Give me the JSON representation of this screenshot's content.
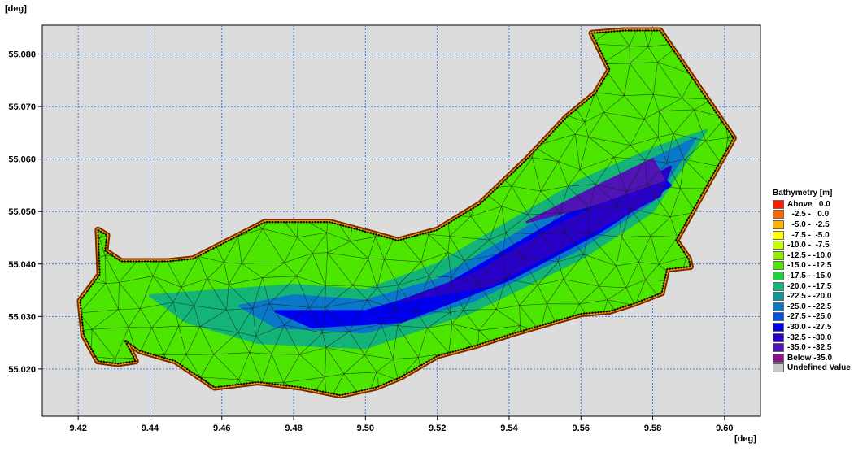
{
  "chart_data": {
    "type": "heatmap",
    "title": "",
    "x_unit": "[deg]",
    "y_unit": "[deg]",
    "xlim": [
      9.41,
      9.61
    ],
    "ylim": [
      55.011,
      55.0855
    ],
    "x_ticks": [
      "9.42",
      "9.44",
      "9.46",
      "9.48",
      "9.50",
      "9.52",
      "9.54",
      "9.56",
      "9.58",
      "9.60"
    ],
    "y_ticks": [
      "55.020",
      "55.030",
      "55.040",
      "55.050",
      "55.060",
      "55.070",
      "55.080"
    ],
    "grid": true,
    "legend_placement": "right",
    "legend": {
      "title": "Bathymetry [m]",
      "entries": [
        {
          "label": "Above   0.0",
          "color": "#ff1a00"
        },
        {
          "label": "  -2.5 -   0.0",
          "color": "#ff6a00"
        },
        {
          "label": "  -5.0 -  -2.5",
          "color": "#ffb300"
        },
        {
          "label": "  -7.5 -  -5.0",
          "color": "#ffff00"
        },
        {
          "label": "-10.0 -  -7.5",
          "color": "#c8ff00"
        },
        {
          "label": "-12.5 - -10.0",
          "color": "#8cf000"
        },
        {
          "label": "-15.0 - -12.5",
          "color": "#4ce600"
        },
        {
          "label": "-17.5 - -15.0",
          "color": "#1ed23c"
        },
        {
          "label": "-20.0 - -17.5",
          "color": "#14b478"
        },
        {
          "label": "-22.5 - -20.0",
          "color": "#0f96a0"
        },
        {
          "label": "-25.0 - -22.5",
          "color": "#0a78c8"
        },
        {
          "label": "-27.5 - -25.0",
          "color": "#0050e6"
        },
        {
          "label": "-30.0 - -27.5",
          "color": "#0000f0"
        },
        {
          "label": "-32.5 - -30.0",
          "color": "#2800c8"
        },
        {
          "label": "-35.0 - -32.5",
          "color": "#5014b4"
        },
        {
          "label": "Below -35.0",
          "color": "#8c1490"
        },
        {
          "label": "Undefined Value",
          "color": "#c8c8c8"
        }
      ]
    },
    "domain_outline": [
      [
        9.4255,
        55.0465
      ],
      [
        9.428,
        55.0455
      ],
      [
        9.4275,
        55.0425
      ],
      [
        9.432,
        55.0405
      ],
      [
        9.445,
        55.0405
      ],
      [
        9.452,
        55.041
      ],
      [
        9.462,
        55.0445
      ],
      [
        9.472,
        55.048
      ],
      [
        9.49,
        55.048
      ],
      [
        9.501,
        55.046
      ],
      [
        9.509,
        55.0445
      ],
      [
        9.52,
        55.0465
      ],
      [
        9.532,
        55.0515
      ],
      [
        9.545,
        55.06
      ],
      [
        9.556,
        55.068
      ],
      [
        9.564,
        55.0725
      ],
      [
        9.568,
        55.077
      ],
      [
        9.563,
        55.084
      ],
      [
        9.572,
        55.0845
      ],
      [
        9.582,
        55.0845
      ],
      [
        9.6025,
        55.064
      ],
      [
        9.5865,
        55.0445
      ],
      [
        9.59,
        55.041
      ],
      [
        9.5905,
        55.0395
      ],
      [
        9.584,
        55.039
      ],
      [
        9.5825,
        55.0345
      ],
      [
        9.575,
        55.0325
      ],
      [
        9.568,
        55.031
      ],
      [
        9.56,
        55.0305
      ],
      [
        9.55,
        55.0285
      ],
      [
        9.54,
        55.0265
      ],
      [
        9.531,
        55.0245
      ],
      [
        9.52,
        55.0225
      ],
      [
        9.51,
        55.0185
      ],
      [
        9.503,
        55.0165
      ],
      [
        9.493,
        55.015
      ],
      [
        9.482,
        55.0165
      ],
      [
        9.47,
        55.0175
      ],
      [
        9.458,
        55.0165
      ],
      [
        9.447,
        55.0215
      ],
      [
        9.437,
        55.0235
      ],
      [
        9.433,
        55.0255
      ],
      [
        9.436,
        55.0215
      ],
      [
        9.431,
        55.021
      ],
      [
        9.4255,
        55.0215
      ],
      [
        9.4215,
        55.0265
      ],
      [
        9.4205,
        55.033
      ],
      [
        9.426,
        55.038
      ]
    ],
    "depth_contours": [
      {
        "depth_m": -15.0,
        "points": [
          [
            9.44,
            55.034
          ],
          [
            9.46,
            55.035
          ],
          [
            9.48,
            55.036
          ],
          [
            9.5,
            55.035
          ],
          [
            9.52,
            55.04
          ],
          [
            9.54,
            55.048
          ],
          [
            9.56,
            55.056
          ],
          [
            9.58,
            55.062
          ],
          [
            9.595,
            55.0655
          ],
          [
            9.58,
            55.05
          ],
          [
            9.56,
            55.041
          ],
          [
            9.53,
            55.031
          ],
          [
            9.5,
            55.024
          ],
          [
            9.47,
            55.025
          ],
          [
            9.45,
            55.029
          ]
        ]
      },
      {
        "depth_m": -22.5,
        "points": [
          [
            9.465,
            55.032
          ],
          [
            9.48,
            55.034
          ],
          [
            9.5,
            55.033
          ],
          [
            9.52,
            55.037
          ],
          [
            9.54,
            55.045
          ],
          [
            9.56,
            55.053
          ],
          [
            9.58,
            55.06
          ],
          [
            9.592,
            55.064
          ],
          [
            9.58,
            55.052
          ],
          [
            9.56,
            55.043
          ],
          [
            9.53,
            55.033
          ],
          [
            9.5,
            55.027
          ],
          [
            9.475,
            55.028
          ]
        ]
      },
      {
        "depth_m": -27.5,
        "points": [
          [
            9.475,
            55.031
          ],
          [
            9.5,
            55.031
          ],
          [
            9.52,
            55.035
          ],
          [
            9.54,
            55.043
          ],
          [
            9.56,
            55.051
          ],
          [
            9.58,
            55.058
          ],
          [
            9.585,
            55.055
          ],
          [
            9.565,
            55.046
          ],
          [
            9.54,
            55.037
          ],
          [
            9.51,
            55.029
          ],
          [
            9.485,
            55.028
          ]
        ]
      },
      {
        "depth_m": -32.5,
        "points": [
          [
            9.51,
            55.033
          ],
          [
            9.53,
            55.038
          ],
          [
            9.55,
            55.046
          ],
          [
            9.57,
            55.053
          ],
          [
            9.585,
            55.0585
          ],
          [
            9.582,
            55.053
          ],
          [
            9.56,
            55.045
          ],
          [
            9.535,
            55.036
          ]
        ]
      },
      {
        "depth_m": -35.0,
        "points": [
          [
            9.545,
            55.048
          ],
          [
            9.565,
            55.055
          ],
          [
            9.58,
            55.06
          ],
          [
            9.583,
            55.056
          ],
          [
            9.562,
            55.051
          ]
        ]
      }
    ],
    "shallow_pocket": [
      [
        9.5635,
        55.0835
      ],
      [
        9.567,
        55.0775
      ],
      [
        9.561,
        55.0785
      ]
    ]
  }
}
